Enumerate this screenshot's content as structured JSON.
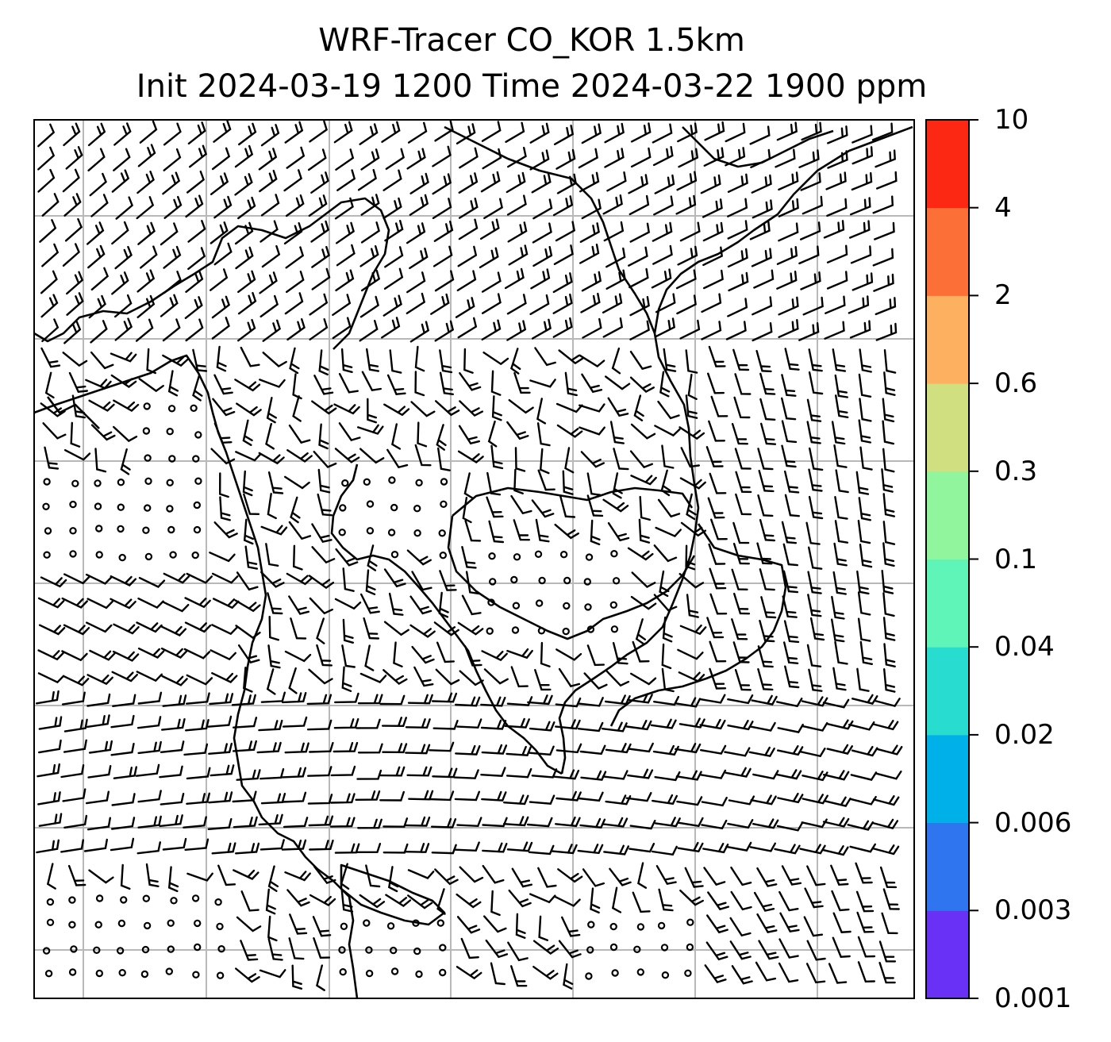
{
  "figure": {
    "title_line1": "WRF-Tracer CO_KOR 1.5km",
    "title_line2": "Init 2024-03-19 1200 Time 2024-03-22 1900 ppm"
  },
  "colorbar": {
    "levels": [
      "0.001",
      "0.003",
      "0.006",
      "0.02",
      "0.04",
      "0.1",
      "0.3",
      "0.6",
      "2",
      "4",
      "10"
    ],
    "colors": [
      "#6930f5",
      "#3075f0",
      "#00b0e8",
      "#28dcd0",
      "#5ff5b8",
      "#90f59c",
      "#d0e080",
      "#fcb060",
      "#fc7038",
      "#fc2814"
    ]
  },
  "map": {
    "background": "#ffffff",
    "gridline_color": "#b8b8b8",
    "coastline_color": "#000000",
    "barb_color": "#000000",
    "features": [
      "wind-barbs",
      "coastlines",
      "lat-lon-gridlines"
    ]
  }
}
